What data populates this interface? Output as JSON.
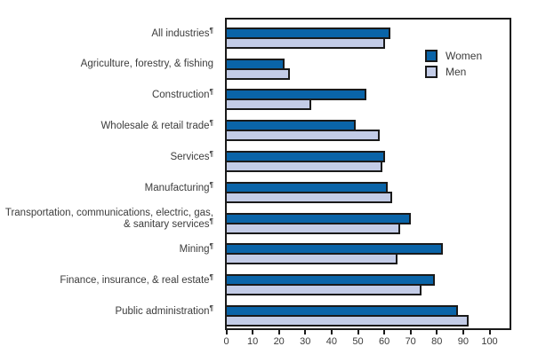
{
  "chart_data": {
    "type": "bar",
    "orientation": "horizontal",
    "title": "",
    "xlabel": "",
    "ylabel": "",
    "xlim": [
      0,
      100
    ],
    "xticks": [
      "0",
      "10",
      "20",
      "30",
      "40",
      "50",
      "60",
      "70",
      "80",
      "90",
      "100"
    ],
    "grid": false,
    "legend_position": "inside-upper-right",
    "footnote_marker": "¶",
    "categories": [
      {
        "label": "All industries",
        "footnote": true
      },
      {
        "label": "Agriculture, forestry, & fishing",
        "footnote": false
      },
      {
        "label": "Construction",
        "footnote": true
      },
      {
        "label": "Wholesale & retail trade",
        "footnote": true
      },
      {
        "label": "Services",
        "footnote": true
      },
      {
        "label": "Manufacturing",
        "footnote": true
      },
      {
        "label": "Transportation, communications, electric, gas, & sanitary services",
        "footnote": true
      },
      {
        "label": "Mining",
        "footnote": true
      },
      {
        "label": "Finance, insurance, & real estate",
        "footnote": true
      },
      {
        "label": "Public administration",
        "footnote": true
      }
    ],
    "series": [
      {
        "name": "Women",
        "color": "#0a64a8",
        "values": [
          62,
          22,
          53,
          49,
          60,
          61,
          70,
          82,
          79,
          88
        ]
      },
      {
        "name": "Men",
        "color": "#c3cce7",
        "values": [
          60,
          24,
          32,
          58,
          59,
          63,
          66,
          65,
          74,
          92
        ]
      }
    ]
  },
  "colors": {
    "women_bar": "#0a64a8",
    "men_bar": "#c3cce7",
    "bar_outline": "#1a1a1a",
    "axis": "#1a1a1a",
    "text": "#3c3c3c",
    "background": "#ffffff"
  }
}
